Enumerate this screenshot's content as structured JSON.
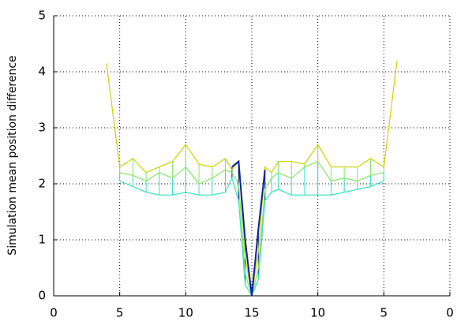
{
  "chart_data": {
    "type": "line",
    "ylabel": "Simulation mean position difference",
    "x": [
      4,
      5,
      6,
      7,
      8,
      9,
      10,
      11,
      12,
      13,
      13.5,
      14,
      14.5,
      15,
      15.5,
      16,
      16.5,
      17,
      18,
      19,
      20,
      21,
      22,
      23,
      24,
      25,
      26
    ],
    "series": [
      {
        "color": "#c8d400",
        "values": [
          4.15,
          2.3,
          2.45,
          2.2,
          2.3,
          2.4,
          2.7,
          2.35,
          2.3,
          2.45,
          2.25,
          2.4,
          0.7,
          0,
          0.8,
          2.3,
          2.2,
          2.4,
          2.4,
          2.35,
          2.7,
          2.3,
          2.3,
          2.3,
          2.45,
          2.3,
          4.2
        ]
      },
      {
        "color": "#7fe860",
        "values": [
          null,
          2.2,
          2.15,
          2.05,
          2.2,
          2.1,
          2.3,
          2.0,
          2.1,
          2.25,
          2.2,
          2.0,
          0.4,
          0,
          0.5,
          1.9,
          2.1,
          2.2,
          2.1,
          2.3,
          2.4,
          2.05,
          2.1,
          2.05,
          2.15,
          2.2,
          null
        ]
      },
      {
        "color": "#30e0c0",
        "values": [
          null,
          2.05,
          1.95,
          1.85,
          1.8,
          1.8,
          1.85,
          1.8,
          1.8,
          1.85,
          2.1,
          1.7,
          0.2,
          0,
          0.3,
          1.7,
          1.85,
          1.9,
          1.8,
          1.8,
          1.8,
          1.8,
          1.85,
          1.9,
          1.95,
          2.05,
          null
        ]
      },
      {
        "color": "#1020a0",
        "values": [
          null,
          null,
          null,
          null,
          null,
          null,
          null,
          null,
          null,
          null,
          2.3,
          2.4,
          1.0,
          0,
          1.2,
          2.25,
          null,
          null,
          null,
          null,
          null,
          null,
          null,
          null,
          null,
          null,
          null
        ]
      }
    ],
    "xlim": [
      0,
      30
    ],
    "xticks": [
      0,
      5,
      10,
      15,
      {
        "value": 20,
        "label": "10"
      },
      {
        "value": 25,
        "label": "5"
      },
      {
        "value": 30,
        "label": "0"
      }
    ],
    "ylim": [
      0,
      5
    ],
    "yticks": [
      0,
      1,
      2,
      3,
      4,
      5
    ],
    "grid": true
  }
}
